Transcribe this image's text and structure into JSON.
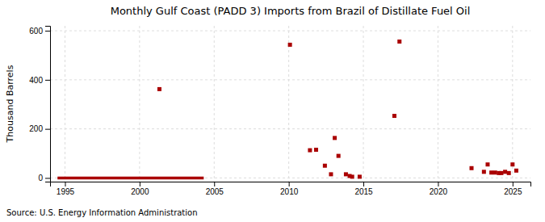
{
  "chart_data": {
    "type": "scatter",
    "title": "Monthly Gulf Coast (PADD 3) Imports from Brazil of Distillate Fuel Oil",
    "ylabel": "Thousand Barrels",
    "annotations": [
      "Source: U.S. Energy Information Administration"
    ],
    "xlim": [
      1994.0,
      2026.2
    ],
    "ylim": [
      -15,
      620
    ],
    "xticks": [
      1995,
      2000,
      2005,
      2010,
      2015,
      2020,
      2025
    ],
    "yticks": [
      0,
      200,
      400,
      600
    ],
    "grid": true,
    "series": [
      {
        "type": "scatter",
        "marker": "square",
        "color": "#aa0000",
        "x": [
          2001.33,
          2010.08,
          2011.42,
          2011.83,
          2012.42,
          2012.83,
          2013.08,
          2013.33,
          2013.83,
          2014.08,
          2014.25,
          2014.75,
          2017.08,
          2017.42,
          2022.25,
          2023.08,
          2023.33,
          2023.58,
          2023.83,
          2024.08,
          2024.25,
          2024.5,
          2024.75,
          2025.0,
          2025.25
        ],
        "values": [
          362,
          543,
          113,
          115,
          50,
          15,
          163,
          90,
          15,
          8,
          5,
          5,
          253,
          556,
          40,
          25,
          55,
          22,
          22,
          20,
          20,
          25,
          20,
          55,
          30
        ]
      },
      {
        "type": "line",
        "color": "#aa0000",
        "x": [
          1994.5,
          2004.3
        ],
        "values": [
          0,
          0
        ]
      }
    ]
  }
}
